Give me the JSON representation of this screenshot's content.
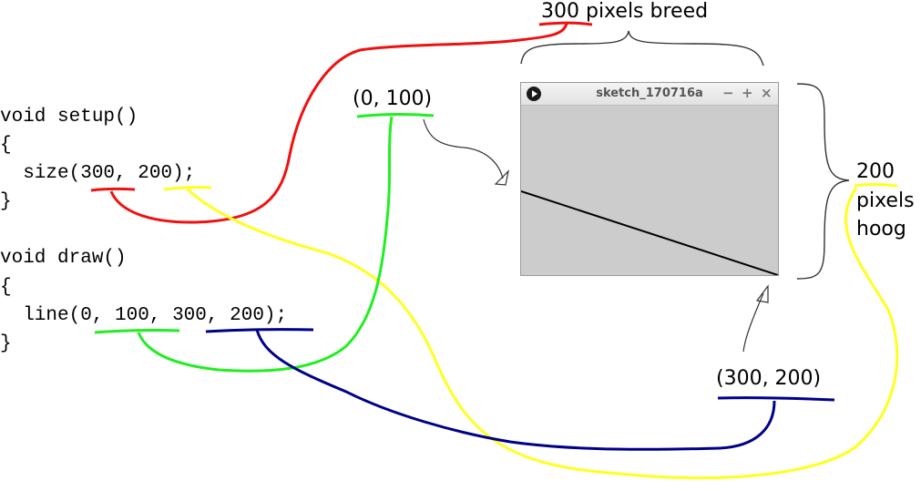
{
  "code": {
    "setup_line": "void setup()",
    "setup_open": "{",
    "size_prefix": "  size(",
    "size_width": "300",
    "size_sep": ", ",
    "size_height": "200",
    "size_suffix": ");",
    "setup_close": "}",
    "draw_line": "void draw()",
    "draw_open": "{",
    "line_prefix": "  line(",
    "line_x1": "0",
    "line_sep1": ", ",
    "line_y1": "100",
    "line_sep2": ", ",
    "line_x2": "300",
    "line_sep3": ", ",
    "line_y2": "200",
    "line_suffix": ");",
    "draw_close": "}"
  },
  "annotations": {
    "width_label": "300 pixels breed",
    "height_number": "200",
    "height_word1": "pixels",
    "height_word2": "hoog",
    "start_point": "(0, 100)",
    "end_point": "(300, 200)"
  },
  "window": {
    "title": "sketch_170716a",
    "minimize": "−",
    "maximize": "+",
    "close": "×",
    "background_color": "#cccccc"
  },
  "colors": {
    "width_highlight": "#ee1111",
    "height_highlight": "#ffff22",
    "start_highlight": "#22ee22",
    "end_highlight": "#000088"
  }
}
